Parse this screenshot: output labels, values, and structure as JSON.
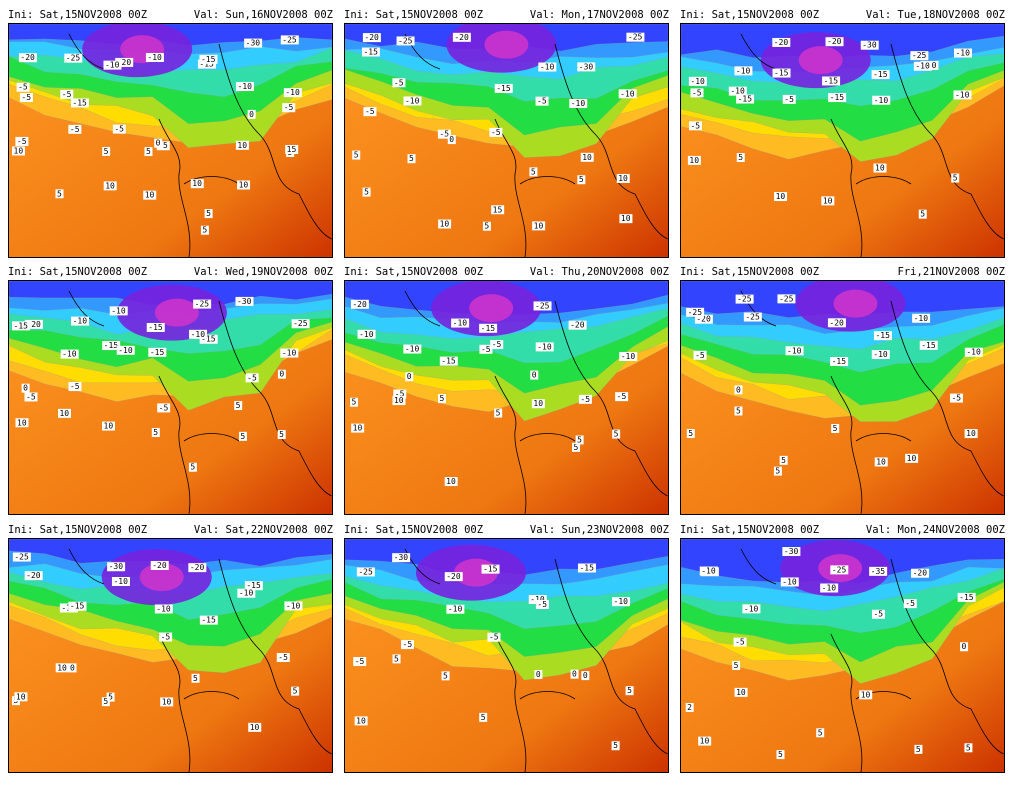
{
  "panels": [
    {
      "ini": "Ini: Sat,15NOV2008 00Z",
      "val": "Val: Sun,16NOV2008 00Z",
      "cold": 0.9,
      "labels": [
        "-20",
        "-25",
        "-20",
        "-10",
        "-15",
        "-30",
        "-25",
        "-5",
        "-15",
        "-10",
        "-5",
        "-15",
        "-10",
        "-10",
        "-5",
        "-5",
        "-5",
        "0",
        "5",
        "0",
        "-5",
        "-5",
        "-5",
        "5",
        "5",
        "10",
        "10",
        "5",
        "10",
        "5",
        "10",
        "10",
        "5",
        "10",
        "15"
      ]
    },
    {
      "ini": "Ini: Sat,15NOV2008 00Z",
      "val": "Val: Mon,17NOV2008 00Z",
      "cold": 0.9,
      "labels": [
        "-20",
        "-25",
        "-20",
        "-15",
        "-10",
        "-30",
        "-25",
        "-15",
        "-10",
        "-5",
        "-5",
        "-5",
        "-10",
        "-10",
        "-5",
        "-5",
        "0",
        "15",
        "5",
        "10",
        "10",
        "5",
        "5",
        "10",
        "5",
        "10",
        "5",
        "10",
        "5"
      ]
    },
    {
      "ini": "Ini: Sat,15NOV2008 00Z",
      "val": "Val: Tue,18NOV2008 00Z",
      "cold": 0.9,
      "labels": [
        "-10",
        "-10",
        "-15",
        "-20",
        "-30",
        "-25",
        "-10",
        "-5",
        "-15",
        "-20",
        "-15",
        "-15",
        "-10",
        "-10",
        "-5",
        "-10",
        "-5",
        "-15",
        "-10",
        "-10",
        "5",
        "10",
        "5",
        "10",
        "10",
        "10",
        "5"
      ]
    },
    {
      "ini": "Ini: Sat,15NOV2008 00Z",
      "val": "Val: Wed,19NOV2008 00Z",
      "cold": 0.9,
      "labels": [
        "-20",
        "-10",
        "-15",
        "-15",
        "-25",
        "-30",
        "-25",
        "-15",
        "-10",
        "-10",
        "-15",
        "-15",
        "-5",
        "-10",
        "-5",
        "-5",
        "-10",
        "-5",
        "-10",
        "5",
        "5",
        "10",
        "10",
        "10",
        "5",
        "5",
        "5",
        "0",
        "0"
      ]
    },
    {
      "ini": "Ini: Sat,15NOV2008 00Z",
      "val": "Val: Thu,20NOV2008 00Z",
      "cold": 0.85,
      "labels": [
        "-20",
        "-10",
        "-15",
        "-15",
        "-25",
        "-20",
        "-10",
        "-10",
        "-5",
        "-10",
        "-5",
        "-10",
        "-5",
        "-5",
        "5",
        "10",
        "10",
        "5",
        "10",
        "5",
        "5",
        "10",
        "0",
        "5",
        "-5",
        "0",
        "5"
      ]
    },
    {
      "ini": "Ini: Sat,15NOV2008 00Z",
      "val": "Fri,21NOV2008 00Z",
      "cold": 0.9,
      "labels": [
        "-20",
        "-25",
        "-25",
        "-20",
        "-15",
        "-15",
        "-10",
        "-25",
        "-25",
        "-10",
        "-15",
        "-10",
        "-10",
        "-5",
        "-5",
        "0",
        "5",
        "5",
        "10",
        "10",
        "10",
        "5",
        "5",
        "5"
      ]
    },
    {
      "ini": "Ini: Sat,15NOV2008 00Z",
      "val": "Val: Sat,22NOV2008 00Z",
      "cold": 0.9,
      "labels": [
        "-25",
        "-15",
        "-30",
        "-20",
        "-20",
        "-15",
        "-10",
        "-20",
        "-15",
        "-10",
        "-10",
        "-15",
        "-10",
        "-5",
        "5",
        "0",
        "5",
        "10",
        "5",
        "10",
        "5",
        "10",
        "10",
        "5",
        "-5"
      ]
    },
    {
      "ini": "Ini: Sat,15NOV2008 00Z",
      "val": "Val: Sun,23NOV2008 00Z",
      "cold": 0.85,
      "labels": [
        "-25",
        "-30",
        "-20",
        "-15",
        "-10",
        "-15",
        "-10",
        "-5",
        "-5",
        "-10",
        "-5",
        "-5",
        "0",
        "5",
        "10",
        "5",
        "5",
        "5",
        "0",
        "0",
        "5"
      ]
    },
    {
      "ini": "Ini: Sat,15NOV2008 00Z",
      "val": "Val: Mon,24NOV2008 00Z",
      "cold": 0.9,
      "labels": [
        "-15",
        "-10",
        "-30",
        "-25",
        "-35",
        "-20",
        "-15",
        "-10",
        "-5",
        "-10",
        "-10",
        "-5",
        "-5",
        "5",
        "10",
        "10",
        "5",
        "5",
        "10",
        "5",
        "0",
        "2",
        "5"
      ]
    }
  ],
  "colors": {
    "magenta": "#cc33cc",
    "violet": "#7722dd",
    "blue": "#3344ff",
    "lightblue": "#3399ff",
    "cyan": "#33ccff",
    "teal": "#33ddaa",
    "green": "#22dd44",
    "yellowgreen": "#aadd22",
    "yellow": "#ffdd00",
    "orangeyellow": "#ffbb22",
    "orange": "#ff9922",
    "darkorange": "#ee7711",
    "red": "#cc3300"
  }
}
